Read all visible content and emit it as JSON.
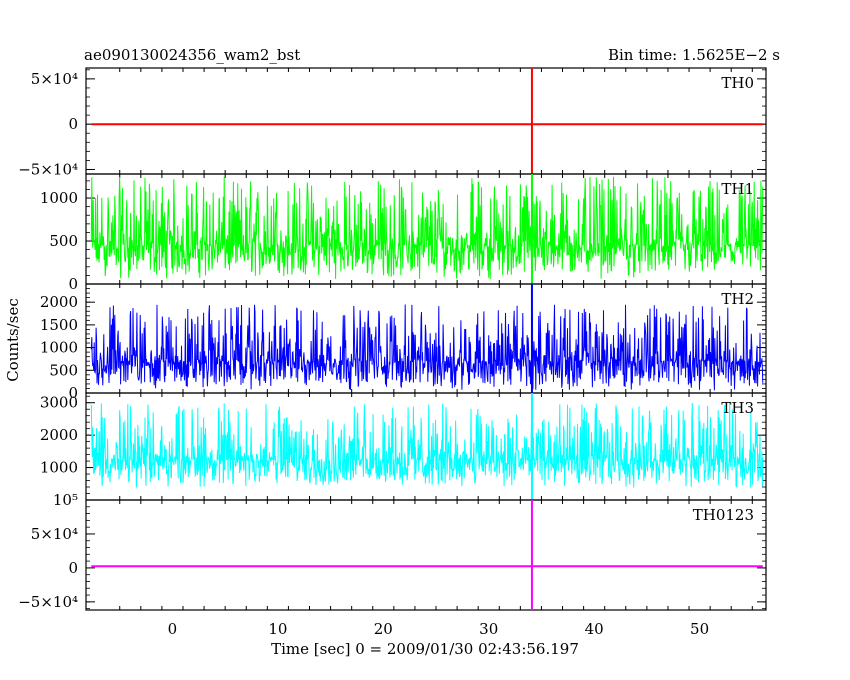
{
  "chart_data": {
    "type": "line",
    "title": "ae090130024356_wam2_bst",
    "bin_time_label": "Bin time: 1.5625E−2 s",
    "xlabel": "Time [sec] 0 = 2009/01/30 02:43:56.197",
    "ylabel": "Counts/sec",
    "xlim": [
      -8.2,
      56.3
    ],
    "x_ticks": [
      0,
      10,
      20,
      30,
      40,
      50
    ],
    "x_tick_labels": [
      "0",
      "10",
      "20",
      "30",
      "40",
      "50"
    ],
    "data_x_range": [
      -7.7,
      56.0
    ],
    "spike_time": 34.1,
    "panels": [
      {
        "name": "TH0",
        "color": "#ff0000",
        "ylim": [
          -55000,
          62000
        ],
        "yticks": [
          -50000,
          0,
          50000
        ],
        "ytick_labels": [
          "−5×10⁴",
          "0",
          "5×10⁴"
        ],
        "baseline": 0,
        "noise_band": [
          0,
          0
        ],
        "spike": {
          "x": 34.1,
          "y_min": -55000,
          "y_max": 62000
        }
      },
      {
        "name": "TH1",
        "color": "#00ff00",
        "ylim": [
          0,
          1280
        ],
        "yticks": [
          0,
          500,
          1000
        ],
        "ytick_labels": [
          "0",
          "500",
          "1000"
        ],
        "baseline": 450,
        "noise_band": [
          50,
          1250
        ],
        "spike": {
          "x": 34.1,
          "y_min": 0,
          "y_max": 1280
        }
      },
      {
        "name": "TH2",
        "color": "#0000ff",
        "ylim": [
          0,
          2400
        ],
        "yticks": [
          0,
          500,
          1000,
          1500,
          2000
        ],
        "ytick_labels": [
          "0",
          "500",
          "1000",
          "1500",
          "2000"
        ],
        "baseline": 700,
        "noise_band": [
          50,
          1950
        ],
        "spike": {
          "x": 34.1,
          "y_min": 0,
          "y_max": 2400
        }
      },
      {
        "name": "TH3",
        "color": "#00ffff",
        "ylim": [
          0,
          3300
        ],
        "yticks": [
          1000,
          2000,
          3000
        ],
        "ytick_labels": [
          "1000",
          "2000",
          "3000"
        ],
        "baseline": 1250,
        "noise_band": [
          350,
          3000
        ],
        "spike": {
          "x": 34.1,
          "y_min": 0,
          "y_max": 3300
        }
      },
      {
        "name": "TH0123",
        "color": "#ff00ff",
        "ylim": [
          -62000,
          100000
        ],
        "yticks": [
          -50000,
          0,
          50000,
          100000
        ],
        "ytick_labels": [
          "−5×10⁴",
          "0",
          "5×10⁴",
          "10⁵"
        ],
        "baseline": 2500,
        "noise_band": [
          2500,
          2500
        ],
        "spike": {
          "x": 34.1,
          "y_min": -62000,
          "y_max": 100000
        }
      }
    ]
  }
}
